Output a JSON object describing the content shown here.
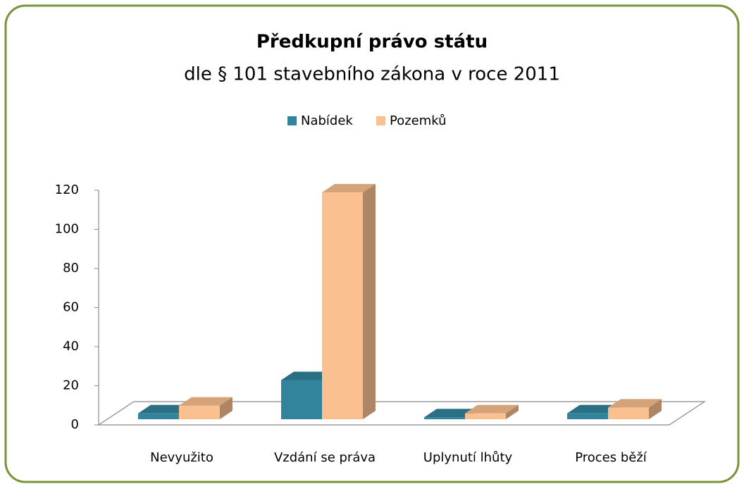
{
  "chart_data": {
    "type": "bar3d",
    "title": "Předkupní právo státu",
    "subtitle": "dle § 101 stavebního zákona v roce 2011",
    "categories": [
      "Nevyužito",
      "Vzdání se práva",
      "Uplynutí lhůty",
      "Proces běží"
    ],
    "series": [
      {
        "name": "Nabídek",
        "color": "#31849b",
        "values": [
          3,
          20,
          1,
          3
        ]
      },
      {
        "name": "Pozemků",
        "color": "#fac090",
        "values": [
          7,
          116,
          3,
          6
        ]
      }
    ],
    "ylim": [
      0,
      120
    ],
    "yticks": [
      0,
      20,
      40,
      60,
      80,
      100,
      120
    ],
    "legend": "top"
  }
}
